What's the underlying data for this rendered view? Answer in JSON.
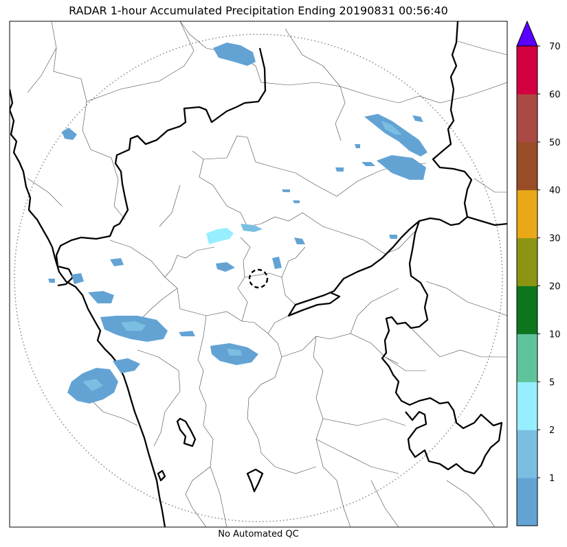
{
  "title": "RADAR 1-hour Accumulated Precipitation Ending 20190831 00:56:40",
  "footer": "No Automated QC",
  "colorbar": {
    "ticks": [
      "1",
      "2",
      "5",
      "10",
      "20",
      "30",
      "40",
      "50",
      "60",
      "70"
    ],
    "colors": [
      "#63a3d4",
      "#7abfe2",
      "#96eeff",
      "#5ec39b",
      "#0d751e",
      "#8b9513",
      "#e8a818",
      "#994d27",
      "#a94a44",
      "#d20041"
    ],
    "extend_color": "#5a00ff"
  },
  "precip_colors": {
    "light": "#63a3d4",
    "medium": "#7abfe2",
    "heavy": "#96eeff"
  },
  "map_colors": {
    "state_border": "#000000",
    "district_border": "#444444",
    "range_ring": "#888888"
  }
}
